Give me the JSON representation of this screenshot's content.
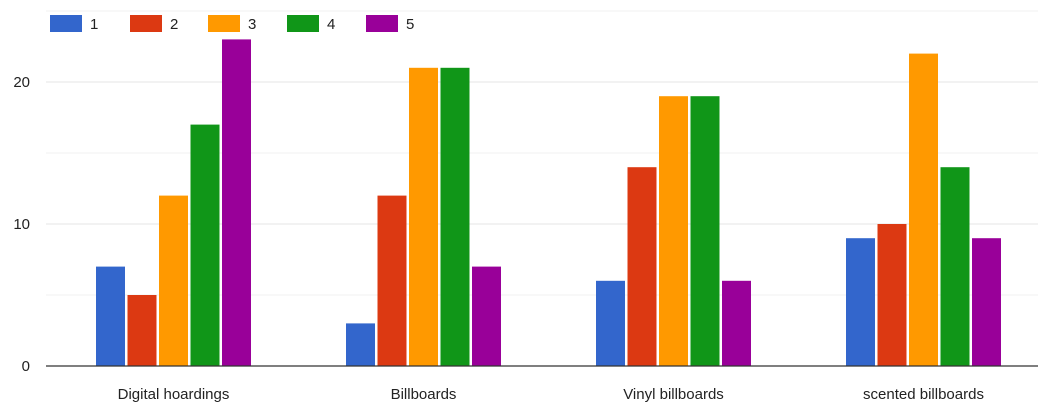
{
  "chart_data": {
    "type": "bar",
    "title": "",
    "xlabel": "",
    "ylabel": "",
    "categories": [
      "Digital hoardings",
      "Billboards",
      "Vinyl billboards",
      "scented billboards"
    ],
    "series": [
      {
        "name": "1",
        "color": "#3366cc",
        "values": [
          7,
          3,
          6,
          9
        ]
      },
      {
        "name": "2",
        "color": "#dc3912",
        "values": [
          5,
          12,
          14,
          10
        ]
      },
      {
        "name": "3",
        "color": "#ff9900",
        "values": [
          12,
          21,
          19,
          22
        ]
      },
      {
        "name": "4",
        "color": "#109618",
        "values": [
          17,
          21,
          19,
          14
        ]
      },
      {
        "name": "5",
        "color": "#990099",
        "values": [
          23,
          7,
          6,
          9
        ]
      }
    ],
    "ylim": [
      0,
      25
    ],
    "yticks": [
      0,
      10,
      20
    ],
    "grid": true,
    "legend_position": "top-left"
  }
}
